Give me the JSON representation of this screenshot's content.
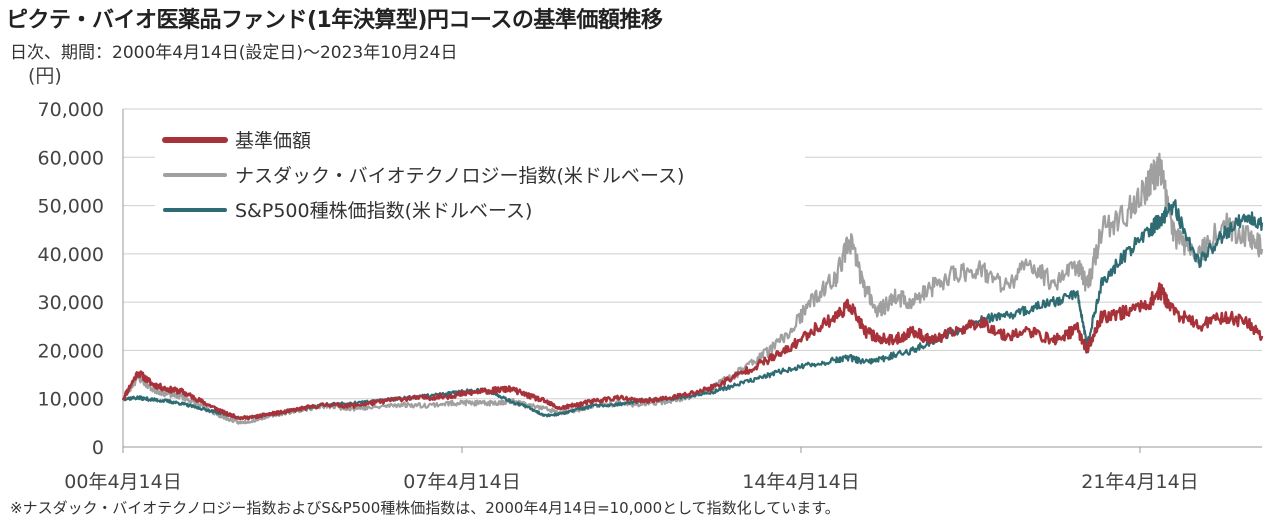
{
  "header": {
    "title": "ピクテ・バイオ医薬品ファンド(1年決算型)円コースの基準価額推移",
    "subtitle": "日次、期間：2000年4月14日(設定日)〜2023年10月24日"
  },
  "footnote": "※ナスダック・バイオテクノロジー指数およびS&P500種株価指数は、2000年4月14日=10,000として指数化しています。",
  "colors": {
    "nav": "#a8323a",
    "nasdaq_bio": "#a0a0a0",
    "sp500": "#2e6b72",
    "grid": "#cfcfcf",
    "axis": "#999999"
  },
  "chart_data": {
    "type": "line",
    "y_unit_label": "(円)",
    "ylim": [
      0,
      70000
    ],
    "y_ticks": [
      {
        "value": 0,
        "label": "0"
      },
      {
        "value": 10000,
        "label": "10,000"
      },
      {
        "value": 20000,
        "label": "20,000"
      },
      {
        "value": 30000,
        "label": "30,000"
      },
      {
        "value": 40000,
        "label": "40,000"
      },
      {
        "value": 50000,
        "label": "50,000"
      },
      {
        "value": 60000,
        "label": "60,000"
      },
      {
        "value": 70000,
        "label": "70,000"
      }
    ],
    "xlim": [
      2000.29,
      2023.81
    ],
    "x_ticks": [
      {
        "value": 2000.29,
        "label": "00年4月14日"
      },
      {
        "value": 2007.29,
        "label": "07年4月14日"
      },
      {
        "value": 2014.29,
        "label": "14年4月14日"
      },
      {
        "value": 2021.29,
        "label": "21年4月14日"
      }
    ],
    "grid": "horizontal",
    "legend_position": "top-left",
    "series": [
      {
        "name": "基準価額",
        "color": "#a8323a",
        "x": [
          2000.29,
          2000.6,
          2000.9,
          2001.2,
          2001.5,
          2001.8,
          2002.1,
          2002.4,
          2002.7,
          2003.0,
          2003.3,
          2003.6,
          2004.0,
          2004.5,
          2005.0,
          2005.5,
          2006.0,
          2006.5,
          2007.0,
          2007.3,
          2007.7,
          2008.0,
          2008.3,
          2008.7,
          2009.0,
          2009.3,
          2009.7,
          2010.0,
          2010.5,
          2011.0,
          2011.5,
          2012.0,
          2012.5,
          2013.0,
          2013.5,
          2014.0,
          2014.5,
          2015.0,
          2015.3,
          2015.6,
          2015.9,
          2016.2,
          2016.6,
          2017.0,
          2017.5,
          2018.0,
          2018.5,
          2019.0,
          2019.5,
          2020.0,
          2020.2,
          2020.5,
          2021.0,
          2021.5,
          2021.7,
          2022.0,
          2022.5,
          2023.0,
          2023.5,
          2023.81
        ],
        "y": [
          10000,
          15500,
          13000,
          12000,
          11500,
          10000,
          8500,
          7000,
          6000,
          6200,
          6800,
          7200,
          8000,
          8800,
          8500,
          9200,
          10000,
          10200,
          10500,
          11000,
          11500,
          11800,
          12000,
          10500,
          9500,
          8000,
          8800,
          9500,
          10200,
          9500,
          10000,
          11000,
          12500,
          15000,
          17500,
          20000,
          24000,
          27000,
          29500,
          24000,
          22500,
          22000,
          24000,
          22000,
          24000,
          26000,
          23000,
          24000,
          22000,
          24500,
          20000,
          27000,
          28000,
          30000,
          32500,
          28000,
          25000,
          27000,
          26000,
          23000
        ]
      },
      {
        "name": "ナスダック・バイオテクノロジー指数(米ドルベース)",
        "color": "#a0a0a0",
        "x": [
          2000.29,
          2000.6,
          2000.9,
          2001.2,
          2001.5,
          2001.8,
          2002.1,
          2002.4,
          2002.7,
          2003.0,
          2003.3,
          2003.6,
          2004.0,
          2004.5,
          2005.0,
          2005.5,
          2006.0,
          2006.5,
          2007.0,
          2007.3,
          2007.7,
          2008.0,
          2008.3,
          2008.7,
          2009.0,
          2009.3,
          2009.7,
          2010.0,
          2010.5,
          2011.0,
          2011.5,
          2012.0,
          2012.5,
          2013.0,
          2013.5,
          2014.0,
          2014.5,
          2015.0,
          2015.3,
          2015.6,
          2015.9,
          2016.2,
          2016.6,
          2017.0,
          2017.5,
          2018.0,
          2018.5,
          2019.0,
          2019.5,
          2020.0,
          2020.2,
          2020.5,
          2021.0,
          2021.5,
          2021.7,
          2022.0,
          2022.5,
          2023.0,
          2023.5,
          2023.81
        ],
        "y": [
          10000,
          14500,
          12000,
          11000,
          10500,
          9000,
          7500,
          6000,
          5000,
          5500,
          6500,
          7000,
          7800,
          8500,
          8000,
          8200,
          8800,
          8600,
          9000,
          9200,
          9000,
          9200,
          9500,
          8500,
          8000,
          7000,
          7800,
          8500,
          9000,
          8800,
          9500,
          10500,
          12500,
          15500,
          19000,
          23000,
          30000,
          35000,
          43000,
          33000,
          28000,
          31000,
          30000,
          33000,
          36000,
          37000,
          33000,
          38000,
          34000,
          38000,
          33000,
          45000,
          48000,
          55000,
          58000,
          44000,
          40000,
          46000,
          44000,
          41000
        ]
      },
      {
        "name": "S&P500種株価指数(米ドルベース)",
        "color": "#2e6b72",
        "x": [
          2000.29,
          2000.6,
          2000.9,
          2001.2,
          2001.5,
          2001.8,
          2002.1,
          2002.4,
          2002.7,
          2003.0,
          2003.3,
          2003.6,
          2004.0,
          2004.5,
          2005.0,
          2005.5,
          2006.0,
          2006.5,
          2007.0,
          2007.3,
          2007.7,
          2008.0,
          2008.3,
          2008.7,
          2009.0,
          2009.3,
          2009.7,
          2010.0,
          2010.5,
          2011.0,
          2011.5,
          2012.0,
          2012.5,
          2013.0,
          2013.5,
          2014.0,
          2014.5,
          2015.0,
          2015.3,
          2015.6,
          2015.9,
          2016.2,
          2016.6,
          2017.0,
          2017.5,
          2018.0,
          2018.5,
          2019.0,
          2019.5,
          2020.0,
          2020.2,
          2020.5,
          2021.0,
          2021.5,
          2021.7,
          2022.0,
          2022.5,
          2023.0,
          2023.5,
          2023.81
        ],
        "y": [
          10000,
          10200,
          9800,
          9500,
          9000,
          8200,
          7500,
          6800,
          6000,
          6200,
          6800,
          7200,
          8000,
          8800,
          9000,
          9500,
          10000,
          10500,
          11000,
          11500,
          11800,
          11000,
          9500,
          8000,
          6500,
          6800,
          7800,
          8500,
          8800,
          9500,
          10000,
          10500,
          11500,
          13000,
          14500,
          16000,
          17000,
          18000,
          18500,
          17500,
          18000,
          19000,
          20000,
          22000,
          24000,
          26500,
          27000,
          28500,
          30000,
          32000,
          21000,
          34000,
          40000,
          45000,
          47000,
          50000,
          38000,
          44000,
          48000,
          46500
        ]
      }
    ]
  }
}
